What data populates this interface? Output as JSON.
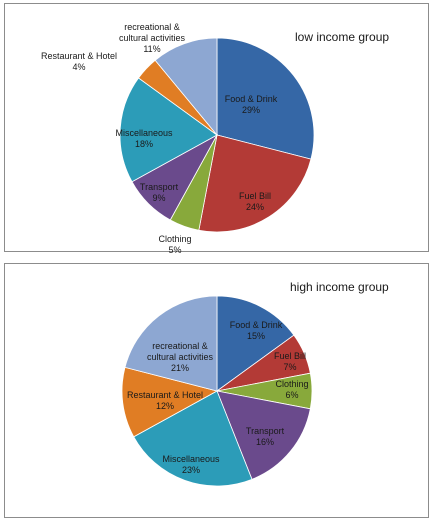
{
  "chart_data": [
    {
      "type": "pie",
      "title": "low income group",
      "slices": [
        {
          "label": [
            "Food & Drink"
          ],
          "value": 29,
          "pct": "29%",
          "color": "#3567a6"
        },
        {
          "label": [
            "Fuel Bill"
          ],
          "value": 24,
          "pct": "24%",
          "color": "#b33a36"
        },
        {
          "label": [
            "Clothing"
          ],
          "value": 5,
          "pct": "5%",
          "color": "#88a93b"
        },
        {
          "label": [
            "Transport"
          ],
          "value": 9,
          "pct": "9%",
          "color": "#6a4a8c"
        },
        {
          "label": [
            "Miscellaneous"
          ],
          "value": 18,
          "pct": "18%",
          "color": "#2c9cb8"
        },
        {
          "label": [
            "Restaurant & Hotel"
          ],
          "value": 4,
          "pct": "4%",
          "color": "#e07d24"
        },
        {
          "label": [
            "recreational &",
            "cultural activities"
          ],
          "value": 11,
          "pct": "11%",
          "color": "#8da7d2"
        }
      ]
    },
    {
      "type": "pie",
      "title": "high income group",
      "slices": [
        {
          "label": [
            "Food & Drink"
          ],
          "value": 15,
          "pct": "15%",
          "color": "#3567a6"
        },
        {
          "label": [
            "Fuel Bill"
          ],
          "value": 7,
          "pct": "7%",
          "color": "#b33a36"
        },
        {
          "label": [
            "Clothing"
          ],
          "value": 6,
          "pct": "6%",
          "color": "#88a93b"
        },
        {
          "label": [
            "Transport"
          ],
          "value": 16,
          "pct": "16%",
          "color": "#6a4a8c"
        },
        {
          "label": [
            "Miscellaneous"
          ],
          "value": 23,
          "pct": "23%",
          "color": "#2c9cb8"
        },
        {
          "label": [
            "Restaurant & Hotel"
          ],
          "value": 12,
          "pct": "12%",
          "color": "#e07d24"
        },
        {
          "label": [
            "recreational &",
            "cultural activities"
          ],
          "value": 21,
          "pct": "21%",
          "color": "#8da7d2"
        }
      ]
    }
  ]
}
